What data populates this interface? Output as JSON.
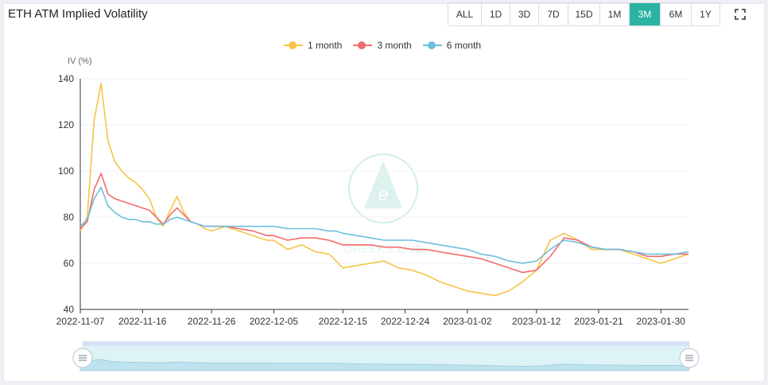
{
  "header": {
    "title": "ETH ATM Implied Volatility",
    "tabs": [
      {
        "label": "ALL",
        "active": false
      },
      {
        "label": "1D",
        "active": false
      },
      {
        "label": "3D",
        "active": false
      },
      {
        "label": "7D",
        "active": false
      },
      {
        "label": "15D",
        "active": false
      },
      {
        "label": "1M",
        "active": false
      },
      {
        "label": "3M",
        "active": true
      },
      {
        "label": "6M",
        "active": false
      },
      {
        "label": "1Y",
        "active": false
      }
    ],
    "fullscreen_icon": "expand-icon"
  },
  "colors": {
    "accent": "#2ab3a3",
    "one_month": "#f7c447",
    "three_month": "#f26b6b",
    "six_month": "#6cbfdd"
  },
  "chart_data": {
    "type": "line",
    "ylabel": "IV (%)",
    "ylim": [
      40,
      140
    ],
    "yticks": [
      40,
      60,
      80,
      100,
      120,
      140
    ],
    "xlim": [
      "2022-11-07",
      "2023-02-03"
    ],
    "xticks": [
      "2022-11-07",
      "2022-11-16",
      "2022-11-26",
      "2022-12-05",
      "2022-12-15",
      "2022-12-24",
      "2023-01-02",
      "2023-01-12",
      "2023-01-21",
      "2023-01-30"
    ],
    "legend_position": "top-center",
    "watermark": "GREEKS.LIVE",
    "series": [
      {
        "name": "1 month",
        "color": "#f7c447",
        "x": [
          "2022-11-07",
          "2022-11-08",
          "2022-11-09",
          "2022-11-10",
          "2022-11-11",
          "2022-11-12",
          "2022-11-13",
          "2022-11-14",
          "2022-11-15",
          "2022-11-16",
          "2022-11-17",
          "2022-11-18",
          "2022-11-19",
          "2022-11-20",
          "2022-11-21",
          "2022-11-22",
          "2022-11-23",
          "2022-11-24",
          "2022-11-25",
          "2022-11-26",
          "2022-11-28",
          "2022-11-30",
          "2022-12-02",
          "2022-12-04",
          "2022-12-05",
          "2022-12-07",
          "2022-12-09",
          "2022-12-11",
          "2022-12-13",
          "2022-12-14",
          "2022-12-15",
          "2022-12-17",
          "2022-12-19",
          "2022-12-21",
          "2022-12-23",
          "2022-12-25",
          "2022-12-27",
          "2022-12-29",
          "2022-12-31",
          "2023-01-02",
          "2023-01-04",
          "2023-01-06",
          "2023-01-08",
          "2023-01-10",
          "2023-01-12",
          "2023-01-14",
          "2023-01-16",
          "2023-01-18",
          "2023-01-20",
          "2023-01-22",
          "2023-01-24",
          "2023-01-26",
          "2023-01-28",
          "2023-01-30",
          "2023-02-01",
          "2023-02-03"
        ],
        "values": [
          74,
          80,
          122,
          138,
          113,
          104,
          100,
          97,
          95,
          92,
          88,
          80,
          76,
          83,
          89,
          82,
          78,
          77,
          75,
          74,
          76,
          74,
          72,
          70,
          70,
          66,
          68,
          65,
          64,
          61,
          58,
          59,
          60,
          61,
          58,
          57,
          55,
          52,
          50,
          48,
          47,
          46,
          48,
          52,
          57,
          70,
          73,
          70,
          66,
          66,
          66,
          64,
          62,
          60,
          62,
          64
        ]
      },
      {
        "name": "3 month",
        "color": "#f26b6b",
        "x": [
          "2022-11-07",
          "2022-11-08",
          "2022-11-09",
          "2022-11-10",
          "2022-11-11",
          "2022-11-12",
          "2022-11-13",
          "2022-11-14",
          "2022-11-15",
          "2022-11-16",
          "2022-11-17",
          "2022-11-18",
          "2022-11-19",
          "2022-11-20",
          "2022-11-21",
          "2022-11-22",
          "2022-11-23",
          "2022-11-24",
          "2022-11-25",
          "2022-11-26",
          "2022-11-28",
          "2022-11-30",
          "2022-12-02",
          "2022-12-04",
          "2022-12-05",
          "2022-12-07",
          "2022-12-09",
          "2022-12-11",
          "2022-12-13",
          "2022-12-14",
          "2022-12-15",
          "2022-12-17",
          "2022-12-19",
          "2022-12-21",
          "2022-12-23",
          "2022-12-25",
          "2022-12-27",
          "2022-12-29",
          "2022-12-31",
          "2023-01-02",
          "2023-01-04",
          "2023-01-06",
          "2023-01-08",
          "2023-01-10",
          "2023-01-12",
          "2023-01-14",
          "2023-01-16",
          "2023-01-18",
          "2023-01-20",
          "2023-01-22",
          "2023-01-24",
          "2023-01-26",
          "2023-01-28",
          "2023-01-30",
          "2023-02-01",
          "2023-02-03"
        ],
        "values": [
          75,
          78,
          92,
          99,
          90,
          88,
          87,
          86,
          85,
          84,
          83,
          80,
          77,
          81,
          84,
          81,
          78,
          77,
          76,
          76,
          76,
          75,
          74,
          72,
          72,
          70,
          71,
          71,
          70,
          69,
          68,
          68,
          68,
          67,
          67,
          66,
          66,
          65,
          64,
          63,
          62,
          60,
          58,
          56,
          57,
          63,
          71,
          70,
          67,
          66,
          66,
          65,
          63,
          63,
          64,
          64
        ]
      },
      {
        "name": "6 month",
        "color": "#6cbfdd",
        "x": [
          "2022-11-07",
          "2022-11-08",
          "2022-11-09",
          "2022-11-10",
          "2022-11-11",
          "2022-11-12",
          "2022-11-13",
          "2022-11-14",
          "2022-11-15",
          "2022-11-16",
          "2022-11-17",
          "2022-11-18",
          "2022-11-19",
          "2022-11-20",
          "2022-11-21",
          "2022-11-22",
          "2022-11-23",
          "2022-11-24",
          "2022-11-25",
          "2022-11-26",
          "2022-11-28",
          "2022-11-30",
          "2022-12-02",
          "2022-12-04",
          "2022-12-05",
          "2022-12-07",
          "2022-12-09",
          "2022-12-11",
          "2022-12-13",
          "2022-12-14",
          "2022-12-15",
          "2022-12-17",
          "2022-12-19",
          "2022-12-21",
          "2022-12-23",
          "2022-12-25",
          "2022-12-27",
          "2022-12-29",
          "2022-12-31",
          "2023-01-02",
          "2023-01-04",
          "2023-01-06",
          "2023-01-08",
          "2023-01-10",
          "2023-01-12",
          "2023-01-14",
          "2023-01-16",
          "2023-01-18",
          "2023-01-20",
          "2023-01-22",
          "2023-01-24",
          "2023-01-26",
          "2023-01-28",
          "2023-01-30",
          "2023-02-01",
          "2023-02-03"
        ],
        "values": [
          76,
          79,
          88,
          93,
          85,
          82,
          80,
          79,
          79,
          78,
          78,
          77,
          77,
          79,
          80,
          79,
          78,
          77,
          76,
          76,
          76,
          76,
          76,
          76,
          76,
          75,
          75,
          75,
          74,
          74,
          73,
          72,
          71,
          70,
          70,
          70,
          69,
          68,
          67,
          66,
          64,
          63,
          61,
          60,
          61,
          66,
          70,
          69,
          67,
          66,
          66,
          65,
          64,
          64,
          64,
          65
        ]
      }
    ]
  }
}
